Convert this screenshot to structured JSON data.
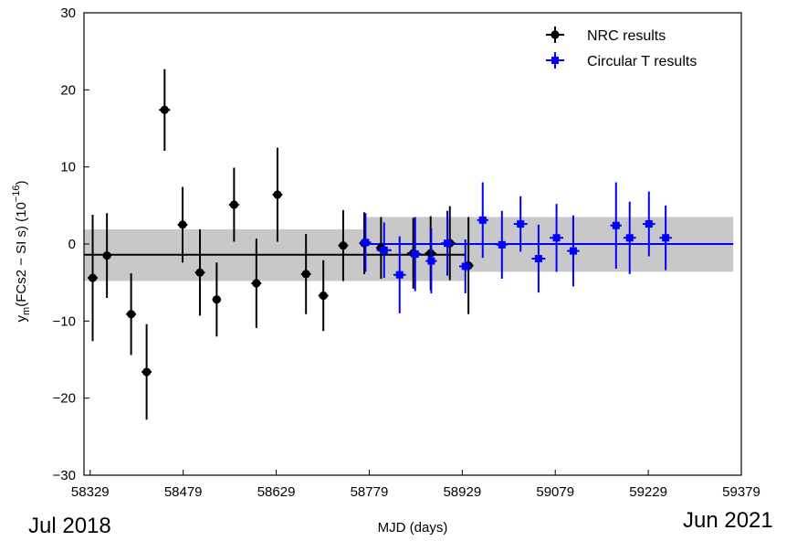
{
  "chart_data": {
    "type": "scatter",
    "xlabel": "MJD (days)",
    "ylabel": "y_m(FCs2 − SI s) (10^−16)",
    "ylabel_parts": {
      "base": "y",
      "sub": "m",
      "mid": "(FCs2 − SI s) (10",
      "sup": "−16",
      "end": ")"
    },
    "xlim": [
      58319,
      59379
    ],
    "ylim": [
      -30,
      30
    ],
    "xticks": [
      58329,
      58479,
      58629,
      58779,
      58929,
      59079,
      59229,
      59379
    ],
    "yticks": [
      -30,
      -20,
      -10,
      0,
      10,
      20,
      30
    ],
    "grid": false,
    "legend_position": "top-right",
    "start_date_label": "Jul 2018",
    "end_date_label": "Jun 2021",
    "bands": [
      {
        "x": [
          58319,
          58935
        ],
        "y": [
          -4.8,
          1.9
        ],
        "color": "#c8c8c8"
      },
      {
        "x": [
          58769,
          59366
        ],
        "y": [
          -3.6,
          3.5
        ],
        "color": "#c8c8c8"
      }
    ],
    "mean_lines": [
      {
        "x": [
          58319,
          58935
        ],
        "y": -1.4,
        "color": "#000000"
      },
      {
        "x": [
          58769,
          59366
        ],
        "y": 0.0,
        "color": "#0000ff"
      }
    ],
    "series": [
      {
        "name": "NRC results",
        "color": "#000000",
        "marker": "circle",
        "points": [
          {
            "x": 58333,
            "y": -4.4,
            "xerr": 8,
            "yerr": 8.2
          },
          {
            "x": 58356,
            "y": -1.5,
            "xerr": 7,
            "yerr": 5.5
          },
          {
            "x": 58395,
            "y": -9.1,
            "xerr": 8,
            "yerr": 5.3
          },
          {
            "x": 58420,
            "y": -16.6,
            "xerr": 8,
            "yerr": 6.2
          },
          {
            "x": 58449,
            "y": 17.4,
            "xerr": 9,
            "yerr": 5.3
          },
          {
            "x": 58478,
            "y": 2.5,
            "xerr": 8,
            "yerr": 4.9
          },
          {
            "x": 58506,
            "y": -3.7,
            "xerr": 8,
            "yerr": 5.6
          },
          {
            "x": 58533,
            "y": -7.2,
            "xerr": 7,
            "yerr": 4.8
          },
          {
            "x": 58561,
            "y": 5.1,
            "xerr": 8,
            "yerr": 4.8
          },
          {
            "x": 58597,
            "y": -5.1,
            "xerr": 8,
            "yerr": 5.8
          },
          {
            "x": 58631,
            "y": 6.4,
            "xerr": 8,
            "yerr": 6.1
          },
          {
            "x": 58677,
            "y": -3.9,
            "xerr": 8,
            "yerr": 5.2
          },
          {
            "x": 58705,
            "y": -6.7,
            "xerr": 8,
            "yerr": 4.6
          },
          {
            "x": 58737,
            "y": -0.2,
            "xerr": 8,
            "yerr": 4.6
          },
          {
            "x": 58771,
            "y": 0.1,
            "xerr": 8,
            "yerr": 4.0
          },
          {
            "x": 58798,
            "y": -0.5,
            "xerr": 8,
            "yerr": 4.0
          },
          {
            "x": 58850,
            "y": -1.2,
            "xerr": 10,
            "yerr": 4.6
          },
          {
            "x": 58878,
            "y": -1.2,
            "xerr": 9,
            "yerr": 4.8
          },
          {
            "x": 58909,
            "y": 0.1,
            "xerr": 9,
            "yerr": 4.8
          },
          {
            "x": 58939,
            "y": -2.8,
            "xerr": 8,
            "yerr": 6.3
          }
        ]
      },
      {
        "name": "Circular T results",
        "color": "#0000ff",
        "marker": "square",
        "points": [
          {
            "x": 58773,
            "y": 0.2,
            "xerr": 9,
            "yerr": 3.8
          },
          {
            "x": 58803,
            "y": -0.8,
            "xerr": 12,
            "yerr": 3.6
          },
          {
            "x": 58828,
            "y": -4.0,
            "xerr": 10,
            "yerr": 5.0
          },
          {
            "x": 58853,
            "y": -1.3,
            "xerr": 10,
            "yerr": 4.8
          },
          {
            "x": 58879,
            "y": -2.2,
            "xerr": 9,
            "yerr": 4.2
          },
          {
            "x": 58905,
            "y": 0.1,
            "xerr": 10,
            "yerr": 4.2
          },
          {
            "x": 58934,
            "y": -2.9,
            "xerr": 10,
            "yerr": 3.5
          },
          {
            "x": 58962,
            "y": 3.1,
            "xerr": 9,
            "yerr": 4.9
          },
          {
            "x": 58993,
            "y": -0.1,
            "xerr": 9,
            "yerr": 4.4
          },
          {
            "x": 59023,
            "y": 2.6,
            "xerr": 11,
            "yerr": 3.6
          },
          {
            "x": 59052,
            "y": -1.9,
            "xerr": 11,
            "yerr": 4.4
          },
          {
            "x": 59081,
            "y": 0.8,
            "xerr": 11,
            "yerr": 4.4
          },
          {
            "x": 59108,
            "y": -0.9,
            "xerr": 10,
            "yerr": 4.6
          },
          {
            "x": 59177,
            "y": 2.4,
            "xerr": 9,
            "yerr": 5.6
          },
          {
            "x": 59199,
            "y": 0.8,
            "xerr": 10,
            "yerr": 4.7
          },
          {
            "x": 59230,
            "y": 2.6,
            "xerr": 10,
            "yerr": 4.2
          },
          {
            "x": 59257,
            "y": 0.8,
            "xerr": 10,
            "yerr": 4.2
          }
        ]
      }
    ]
  }
}
